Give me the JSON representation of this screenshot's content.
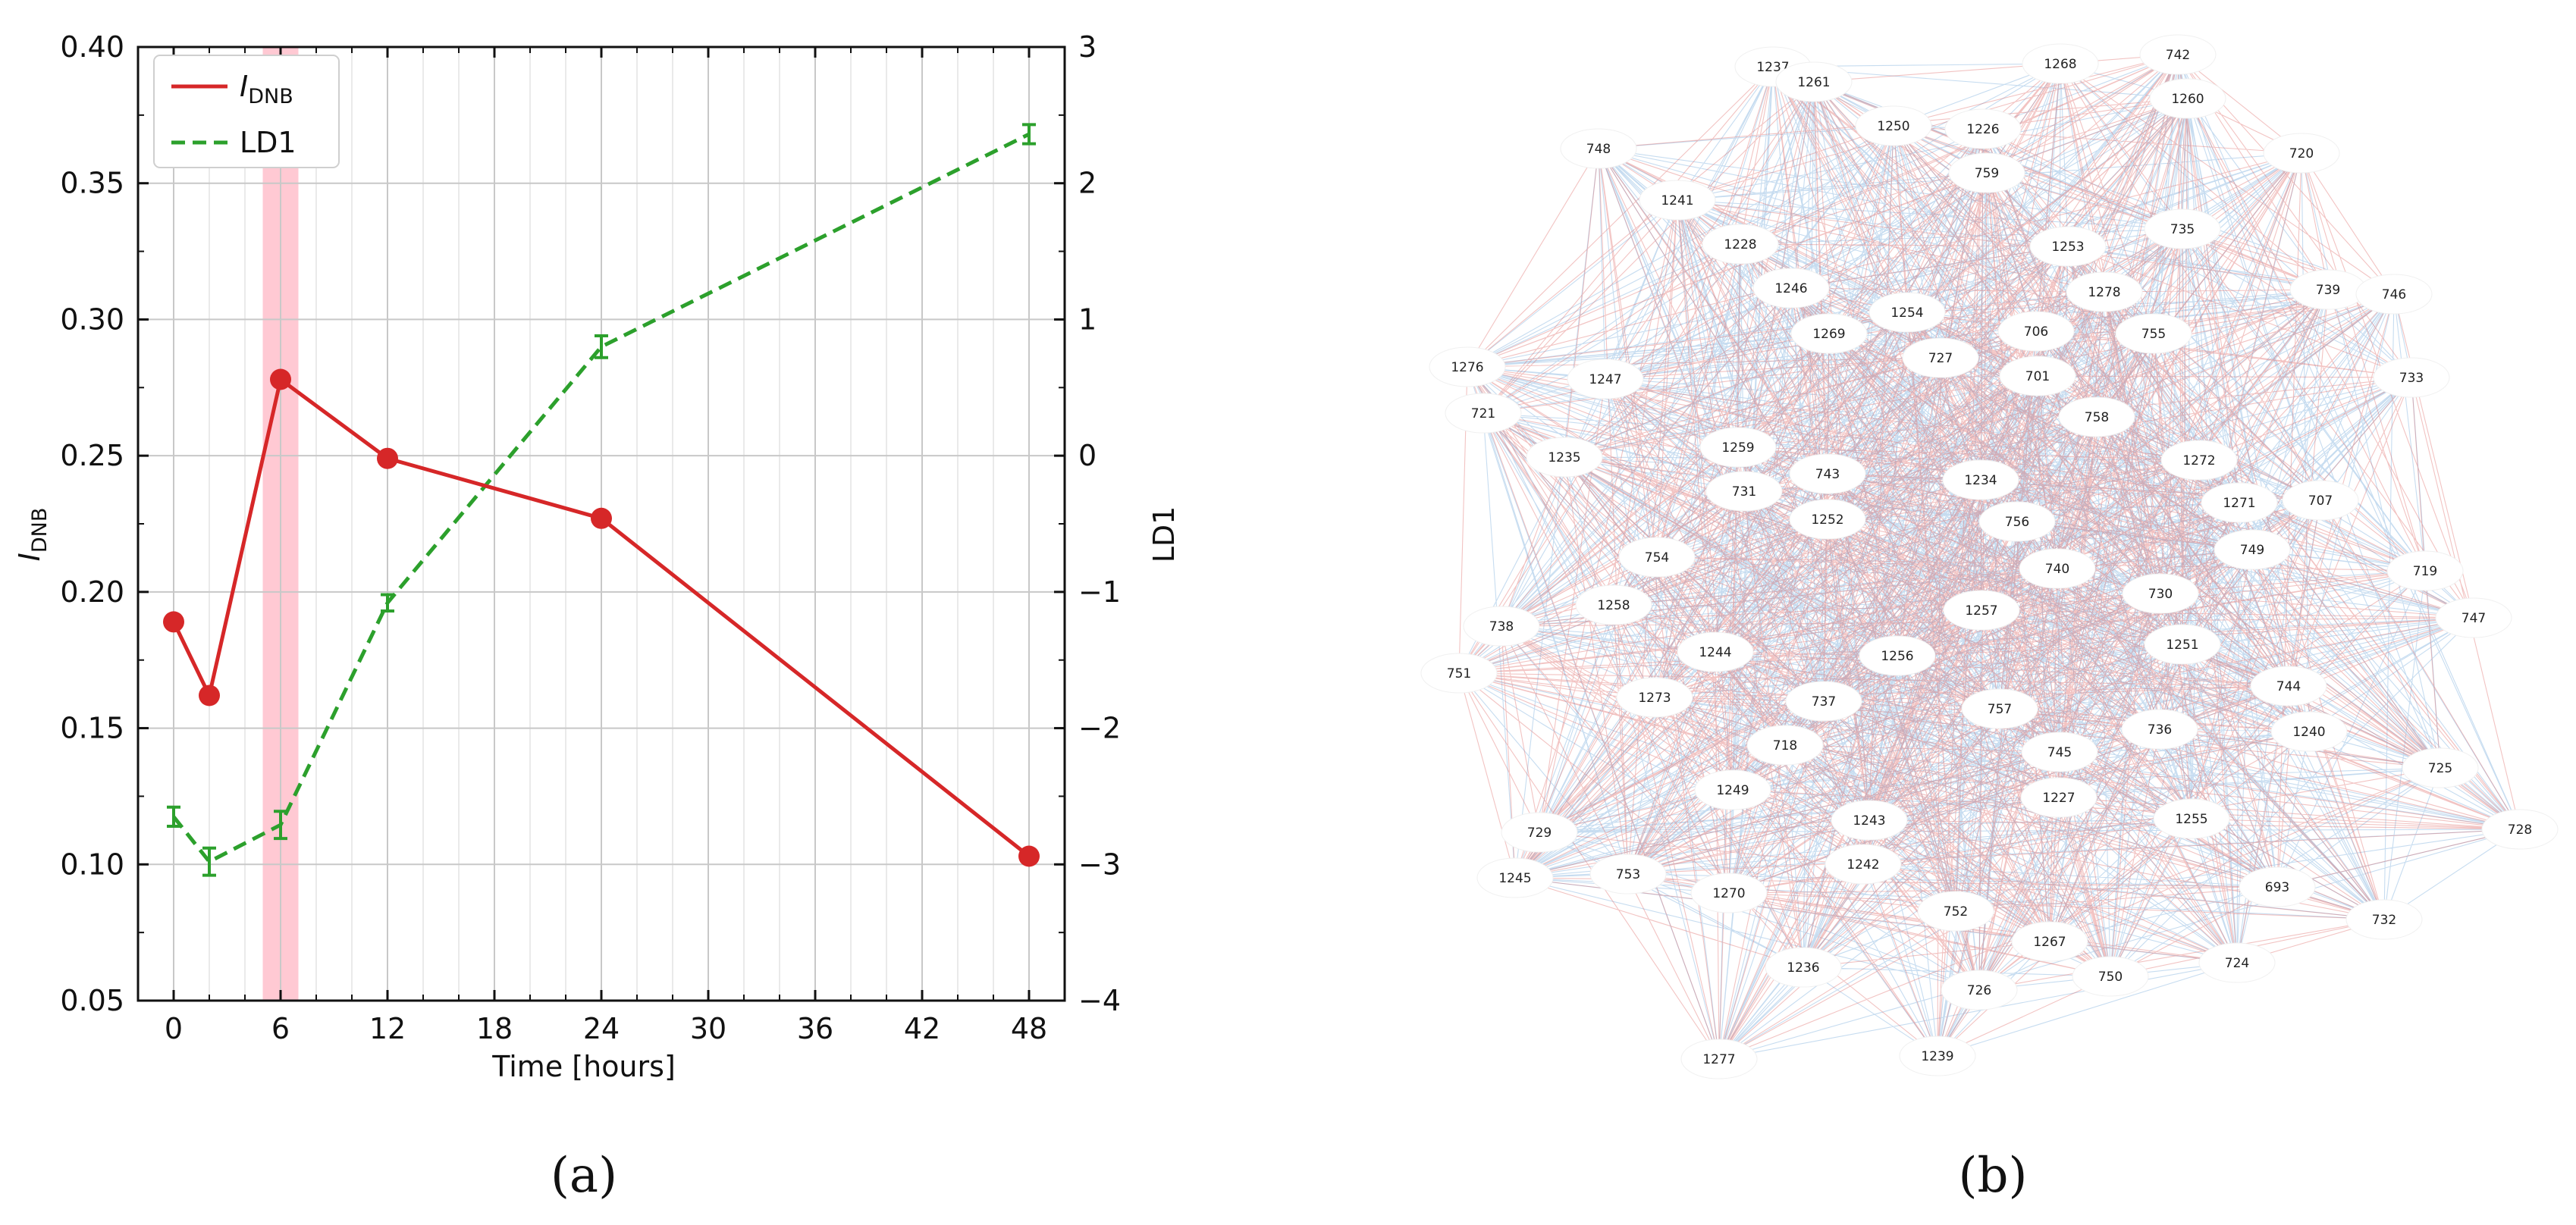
{
  "panels": {
    "a": "(a)",
    "b": "(b)"
  },
  "colors": {
    "idnb": "#d62728",
    "ld1": "#2ca02c",
    "highlight": "#ffc0cb",
    "edge_red": "#d9534f",
    "edge_blue": "#5b9bd5",
    "grid": "#c8c8c8"
  },
  "chart_data": {
    "type": "line",
    "xlabel": "Time [hours]",
    "ylabel_left": {
      "main": "I",
      "sub": "DNB"
    },
    "ylabel_right": "LD1",
    "x_ticks": [
      0,
      6,
      12,
      18,
      24,
      30,
      36,
      42,
      48
    ],
    "xlim": [
      -2,
      50
    ],
    "ylim_left": [
      0.05,
      0.4
    ],
    "y_ticks_left": [
      "0.05",
      "0.10",
      "0.15",
      "0.20",
      "0.25",
      "0.30",
      "0.35",
      "0.40"
    ],
    "ylim_right": [
      -4,
      3
    ],
    "y_ticks_right": [
      "−4",
      "−3",
      "−2",
      "−1",
      "0",
      "1",
      "2",
      "3"
    ],
    "highlight_x": [
      5,
      7
    ],
    "grid": true,
    "legend_position": "top-left",
    "series": [
      {
        "name": "I",
        "name_sub": "DNB",
        "axis": "left",
        "style": "solid-marker",
        "x": [
          0,
          2,
          6,
          12,
          24,
          48
        ],
        "y": [
          0.189,
          0.162,
          0.278,
          0.249,
          0.227,
          0.103
        ]
      },
      {
        "name": "LD1",
        "axis": "right",
        "style": "dashed-errorbar",
        "x": [
          0,
          2,
          6,
          12,
          24,
          48
        ],
        "y": [
          -2.65,
          -2.98,
          -2.71,
          -1.08,
          0.8,
          2.36
        ],
        "err": [
          0.07,
          0.1,
          0.1,
          0.06,
          0.08,
          0.07
        ]
      }
    ]
  },
  "network": {
    "node_labels": [
      "1237",
      "1261",
      "1268",
      "742",
      "1250",
      "1226",
      "1260",
      "748",
      "759",
      "720",
      "1241",
      "735",
      "1228",
      "1253",
      "1246",
      "1278",
      "739",
      "746",
      "1254",
      "1269",
      "706",
      "727",
      "755",
      "1276",
      "701",
      "1247",
      "733",
      "721",
      "758",
      "1259",
      "1272",
      "1235",
      "743",
      "1234",
      "731",
      "1271",
      "707",
      "1252",
      "756",
      "749",
      "754",
      "740",
      "730",
      "719",
      "738",
      "1258",
      "1257",
      "747",
      "1251",
      "751",
      "1244",
      "1256",
      "744",
      "1273",
      "737",
      "757",
      "736",
      "1240",
      "718",
      "745",
      "725",
      "1249",
      "1227",
      "1243",
      "1255",
      "728",
      "729",
      "753",
      "1242",
      "693",
      "1245",
      "1270",
      "752",
      "732",
      "1267",
      "724",
      "1236",
      "726",
      "750",
      "1277",
      "1239"
    ]
  }
}
